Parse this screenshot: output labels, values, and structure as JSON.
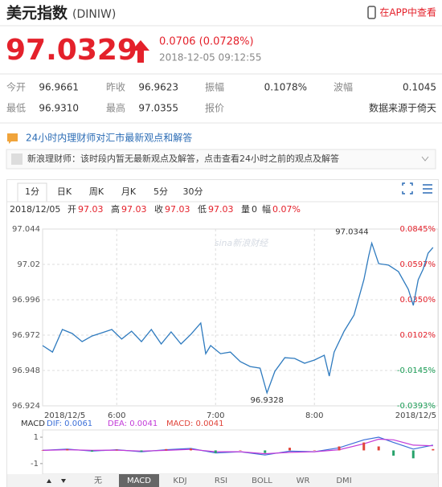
{
  "header": {
    "title": "美元指数",
    "code": "(DINIW)",
    "app_link": "在APP中查看"
  },
  "quote": {
    "price": "97.0329",
    "change": "0.0706 (0.0728%)",
    "time": "2018-12-05 09:12:55"
  },
  "stats": [
    [
      "今开",
      "96.9661"
    ],
    [
      "昨收",
      "96.9623"
    ],
    [
      "振幅",
      "0.1078%"
    ],
    [
      "波幅",
      "0.1045"
    ],
    [
      "最低",
      "96.9310"
    ],
    [
      "最高",
      "97.0355"
    ],
    [
      "报价",
      "数据来源于倚天"
    ]
  ],
  "news": {
    "title": "24小时内理财师对汇市最新观点和解答",
    "item": "新浪理财师：该时段内暂无最新观点及解答，点击查看24小时之前的观点及解答"
  },
  "period_tabs": [
    "1分",
    "日K",
    "周K",
    "月K",
    "5分",
    "30分"
  ],
  "info_bar": {
    "date": "2018/12/05",
    "fields": [
      [
        "开",
        "97.03"
      ],
      [
        "高",
        "97.03"
      ],
      [
        "收",
        "97.03"
      ],
      [
        "低",
        "97.03"
      ],
      [
        "量",
        "0"
      ],
      [
        "幅",
        "0.07%"
      ]
    ]
  },
  "watermark": "sina新浪财经",
  "chart_data": [
    {
      "type": "line",
      "color": "#2f7bbf",
      "grid": true,
      "x": [
        5.25,
        5.35,
        5.45,
        5.55,
        5.65,
        5.75,
        5.85,
        5.95,
        6.05,
        6.15,
        6.25,
        6.35,
        6.45,
        6.55,
        6.65,
        6.75,
        6.85,
        6.9,
        6.95,
        7.05,
        7.15,
        7.25,
        7.35,
        7.45,
        7.52,
        7.6,
        7.7,
        7.8,
        7.9,
        8.0,
        8.1,
        8.15,
        8.2,
        8.3,
        8.4,
        8.5,
        8.55,
        8.58,
        8.65,
        8.75,
        8.85,
        8.95,
        9.0,
        9.05,
        9.1,
        9.15,
        9.2
      ],
      "values": [
        96.9649,
        96.9605,
        96.9758,
        96.9731,
        96.9676,
        96.9714,
        96.9736,
        96.9758,
        96.9693,
        96.9747,
        96.9676,
        96.9758,
        96.966,
        96.9742,
        96.966,
        96.9725,
        96.9802,
        96.9594,
        96.9649,
        96.9594,
        96.9605,
        96.954,
        96.9507,
        96.9496,
        96.9328,
        96.9474,
        96.9567,
        96.9562,
        96.9529,
        96.9551,
        96.9583,
        96.9442,
        96.9605,
        96.9747,
        96.9856,
        97.0096,
        97.026,
        97.0344,
        97.0205,
        97.0195,
        97.0151,
        97.0031,
        96.9922,
        97.0096,
        97.0167,
        97.0276,
        97.0315
      ],
      "xlim": [
        5.25,
        9.25
      ],
      "xticks": [
        {
          "value": 5.25,
          "label": "2018/12/5"
        },
        {
          "value": 6,
          "label": "6:00"
        },
        {
          "value": 7,
          "label": "7:00"
        },
        {
          "value": 8,
          "label": "8:00"
        },
        {
          "value": 9.25,
          "label": "2018/12/5"
        }
      ],
      "ylim": [
        96.924,
        97.044
      ],
      "yticks": [
        97.044,
        97.02,
        96.996,
        96.972,
        96.948,
        96.924
      ],
      "y2lim": [
        -0.0393,
        0.0845
      ],
      "y2ticks": [
        {
          "value": 0.0845,
          "label": "0.0845%"
        },
        {
          "value": 0.0597,
          "label": "0.0597%"
        },
        {
          "value": 0.035,
          "label": "0.0350%"
        },
        {
          "value": 0.0102,
          "label": "0.0102%"
        },
        {
          "value": -0.0145,
          "label": "-0.0145%"
        },
        {
          "value": -0.0393,
          "label": "-0.0393%"
        }
      ]
    },
    {
      "type": "macd",
      "title": "MACD",
      "negative_color": "#27a36b",
      "x": [
        5.25,
        5.5,
        5.75,
        6,
        6.25,
        6.5,
        6.75,
        7,
        7.25,
        7.5,
        7.75,
        8,
        8.25,
        8.5,
        8.65,
        8.8,
        9,
        9.2
      ],
      "xlim": [
        5.25,
        9.25
      ],
      "ylim": [
        -1.8,
        1.55
      ],
      "yticks": [
        1,
        -1
      ],
      "series": [
        {
          "name": "DIF: 0.0061",
          "color": "#3b6fd8",
          "values": [
            0,
            0.1,
            -0.05,
            0.05,
            -0.1,
            0.05,
            0.15,
            -0.2,
            -0.1,
            -0.35,
            -0.05,
            -0.1,
            0.2,
            0.8,
            1.0,
            0.6,
            0.1,
            0.4
          ]
        },
        {
          "name": "DEA: 0.0041",
          "color": "#c23bd8",
          "values": [
            0,
            0.05,
            0,
            0.02,
            -0.05,
            0,
            0.08,
            -0.1,
            -0.1,
            -0.25,
            -0.15,
            -0.1,
            0.05,
            0.5,
            0.85,
            0.8,
            0.4,
            0.35
          ]
        },
        {
          "name": "MACD: 0.0041",
          "color": "#e0443a",
          "values": [
            0,
            0.1,
            -0.1,
            0.06,
            -0.1,
            0.1,
            0.14,
            -0.2,
            0,
            -0.2,
            0.2,
            0,
            0.3,
            0.6,
            0.3,
            -0.4,
            -0.6,
            0.1
          ]
        }
      ]
    }
  ],
  "indicator_tabs": [
    "无",
    "MACD",
    "KDJ",
    "RSI",
    "BOLL",
    "WR",
    "DMI"
  ]
}
